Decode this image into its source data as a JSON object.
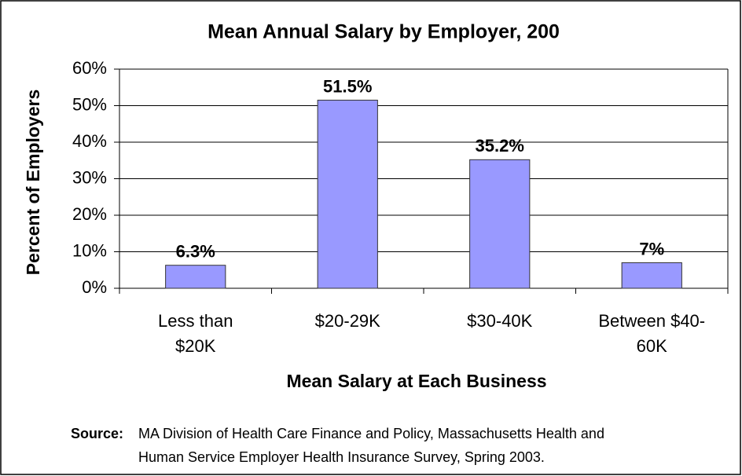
{
  "chart_data": {
    "type": "bar",
    "title": "Mean Annual Salary by Employer, 200",
    "categories": [
      [
        "Less than",
        "$20K"
      ],
      [
        "$20-29K"
      ],
      [
        "$30-40K"
      ],
      [
        "Between $40-",
        "60K"
      ]
    ],
    "values": [
      6.3,
      51.5,
      35.2,
      7
    ],
    "value_labels": [
      "6.3%",
      "51.5%",
      "35.2%",
      "7%"
    ],
    "color": "#9999ff",
    "ylim": [
      0,
      60
    ],
    "yticks": [
      {
        "value": 0,
        "label": "0%"
      },
      {
        "value": 10,
        "label": "10%"
      },
      {
        "value": 20,
        "label": "20%"
      },
      {
        "value": 30,
        "label": "30%"
      },
      {
        "value": 40,
        "label": "40%"
      },
      {
        "value": 50,
        "label": "50%"
      },
      {
        "value": 60,
        "label": "60%"
      }
    ],
    "grid": true,
    "ylabel": "Percent of Employers",
    "xlabel": "Mean Salary at Each Business",
    "source": {
      "label": "Source:",
      "lines": [
        "MA Division of Health Care Finance and Policy, Massachusetts Health and",
        "Human Service Employer Health Insurance Survey, Spring 2003."
      ]
    }
  }
}
